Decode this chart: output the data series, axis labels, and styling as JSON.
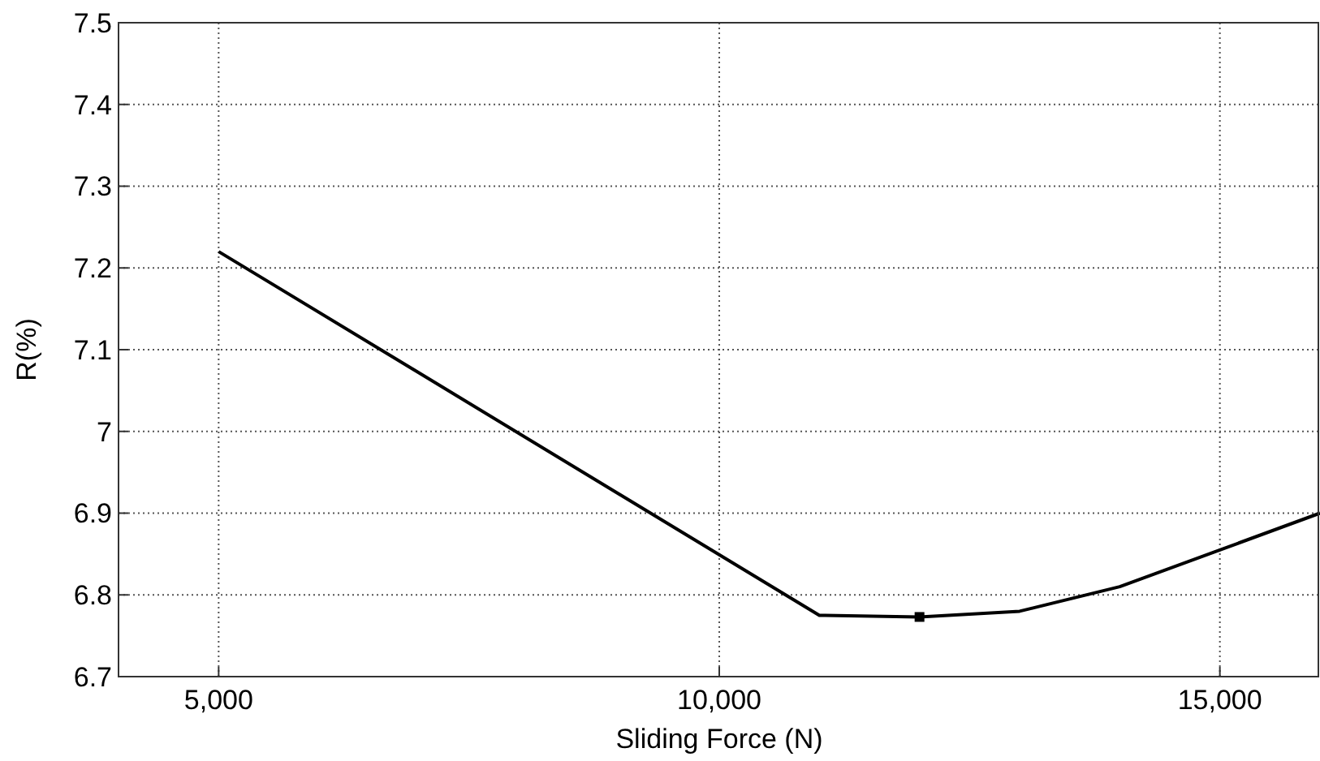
{
  "chart_data": {
    "type": "line",
    "xlabel": "Sliding Force (N)",
    "ylabel": "R(%)",
    "xlim": [
      4000,
      16000
    ],
    "xticks": [
      {
        "value": 5000,
        "label": "5,000"
      },
      {
        "value": 10000,
        "label": "10,000"
      },
      {
        "value": 15000,
        "label": "15,000"
      }
    ],
    "ylim": [
      6.7,
      7.5
    ],
    "yticks": [
      6.7,
      6.8,
      6.9,
      7,
      7.1,
      7.2,
      7.3,
      7.4,
      7.5
    ],
    "grid": true,
    "series": [
      {
        "color": "#000000",
        "x": [
          5000,
          11000,
          12000,
          13000,
          14000,
          15000,
          16000
        ],
        "values": [
          7.22,
          6.775,
          6.773,
          6.78,
          6.81,
          6.855,
          6.9
        ]
      },
      {
        "type": "scatter",
        "marker": "square",
        "color": "#000000",
        "x": [
          12000
        ],
        "values": [
          6.773
        ]
      }
    ]
  }
}
